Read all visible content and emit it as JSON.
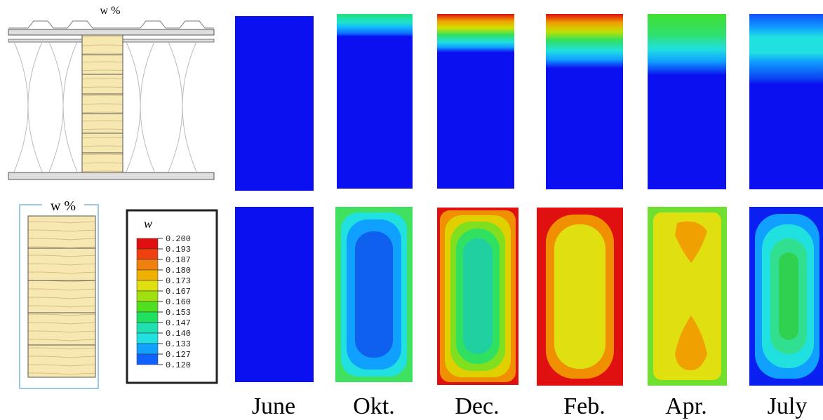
{
  "top_diagram": {
    "label": "w %"
  },
  "cross_section": {
    "label": "w %"
  },
  "legend": {
    "title": "w",
    "ticks": [
      "0.200",
      "0.193",
      "0.187",
      "0.180",
      "0.173",
      "0.167",
      "0.160",
      "0.153",
      "0.147",
      "0.140",
      "0.133",
      "0.127",
      "0.120"
    ]
  },
  "months": [
    "June",
    "Okt.",
    "Dec.",
    "Feb.",
    "Apr.",
    "July"
  ]
}
